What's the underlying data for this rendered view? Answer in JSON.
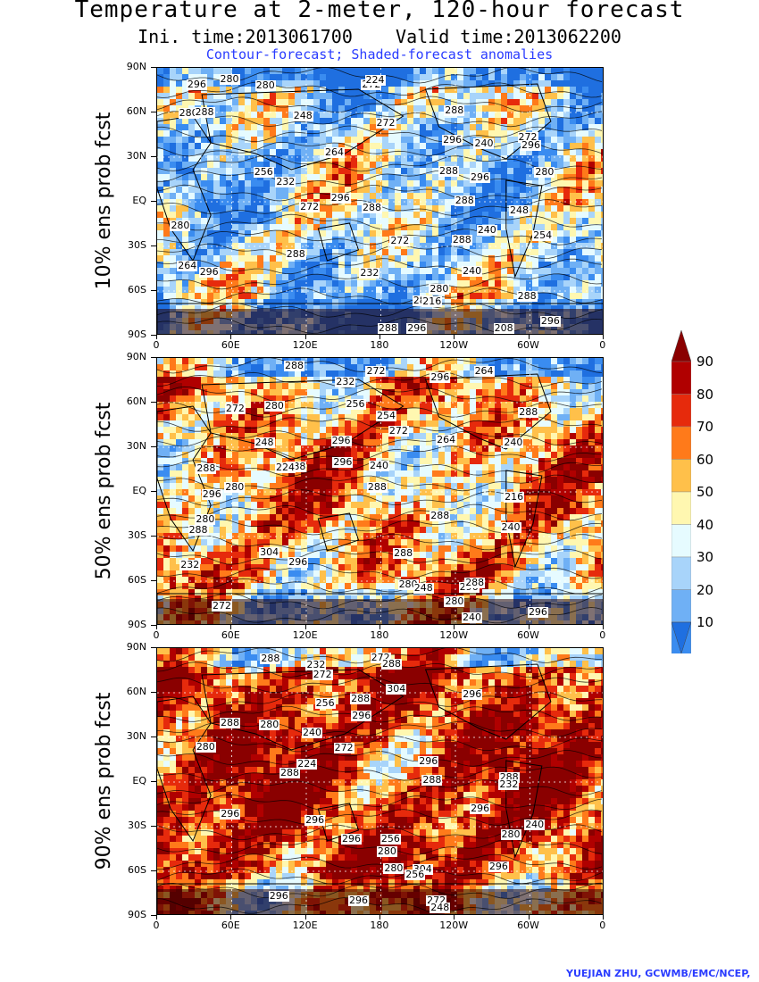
{
  "title": "Temperature at 2-meter, 120-hour forecast",
  "subtitle": "Ini. time:2013061700    Valid time:2013062200",
  "caption": "Contour-forecast; Shaded-forecast anomalies",
  "credit": "YUEJIAN ZHU, GCWMB/EMC/NCEP,",
  "lat_labels": [
    "90N",
    "60N",
    "30N",
    "EQ",
    "30S",
    "60S",
    "90S"
  ],
  "lon_labels": [
    "0",
    "60E",
    "120E",
    "180",
    "120W",
    "60W",
    "0"
  ],
  "panels": [
    {
      "label": "10% ens prob fcst",
      "warmth": 0.35,
      "contour_labels": [
        "272",
        "280",
        "272",
        "288",
        "288",
        "280",
        "288",
        "280",
        "296",
        "296",
        "288",
        "296",
        "296",
        "288",
        "272",
        "264",
        "288",
        "296",
        "280",
        "288",
        "296",
        "280",
        "296",
        "288",
        "296",
        "280",
        "288",
        "280",
        "272",
        "264",
        "256",
        "248",
        "240",
        "232",
        "216",
        "208",
        "224",
        "248",
        "240",
        "232",
        "272",
        "254",
        "240"
      ]
    },
    {
      "label": "50% ens prob fcst",
      "warmth": 0.62,
      "contour_labels": [
        "272",
        "280",
        "272",
        "288",
        "288",
        "280",
        "288",
        "296",
        "280",
        "288",
        "272",
        "264",
        "296",
        "296",
        "288",
        "304",
        "288",
        "296",
        "296",
        "288",
        "296",
        "288",
        "280",
        "288",
        "296",
        "280",
        "272",
        "264",
        "256",
        "240",
        "224",
        "216",
        "240",
        "232",
        "248",
        "240",
        "232",
        "254",
        "248",
        "240"
      ]
    },
    {
      "label": "90% ens prob fcst",
      "warmth": 0.85,
      "contour_labels": [
        "272",
        "288",
        "280",
        "272",
        "288",
        "296",
        "280",
        "296",
        "296",
        "288",
        "304",
        "296",
        "280",
        "288",
        "296",
        "296",
        "304",
        "296",
        "288",
        "296",
        "288",
        "296",
        "288",
        "296",
        "280",
        "280",
        "272",
        "272",
        "256",
        "240",
        "224",
        "232",
        "240",
        "256",
        "256",
        "248",
        "232"
      ]
    }
  ],
  "colorbar": {
    "levels": [
      "10",
      "20",
      "30",
      "40",
      "50",
      "60",
      "70",
      "80",
      "90"
    ],
    "colors": [
      "#1f6fe0",
      "#3a8cf0",
      "#6fb0f5",
      "#a8d4fa",
      "#e6fbff",
      "#fff7b0",
      "#ffc04a",
      "#ff7a1a",
      "#e62a0c",
      "#b00000",
      "#8a0000"
    ]
  }
}
